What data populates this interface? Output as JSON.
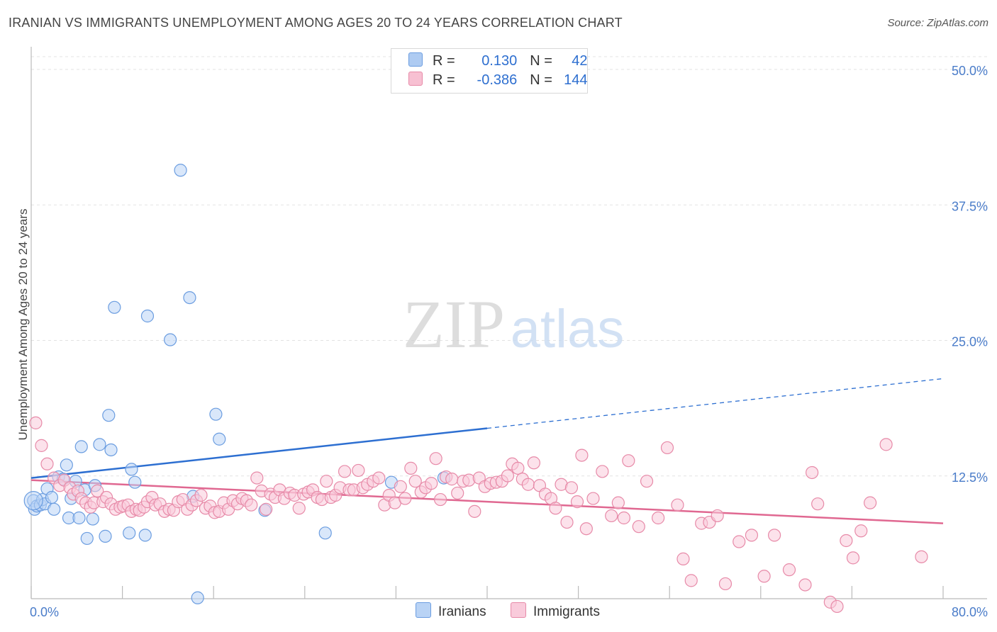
{
  "title": "IRANIAN VS IMMIGRANTS UNEMPLOYMENT AMONG AGES 20 TO 24 YEARS CORRELATION CHART",
  "source": "Source: ZipAtlas.com",
  "watermark": {
    "zip": "ZIP",
    "atlas": "atlas"
  },
  "legend": {
    "rows": [
      {
        "r_label": "R = ",
        "r_value": "0.130",
        "n_label": "N = ",
        "n_value": "42",
        "color": "#aecbf2",
        "border": "#6b9de0"
      },
      {
        "r_label": "R = ",
        "r_value": "-0.386",
        "n_label": "N = ",
        "n_value": "144",
        "color": "#f7c0d2",
        "border": "#e78aa8"
      }
    ]
  },
  "bottom_legend": [
    {
      "label": "Iranians",
      "color": "#b9d3f5",
      "border": "#6b9de0"
    },
    {
      "label": "Immigrants",
      "color": "#f9cbdb",
      "border": "#e78aa8"
    }
  ],
  "chart_data": {
    "type": "scatter",
    "title": "IRANIAN VS IMMIGRANTS UNEMPLOYMENT AMONG AGES 20 TO 24 YEARS CORRELATION CHART",
    "xlabel": "",
    "ylabel": "Unemployment Among Ages 20 to 24 years",
    "xlim": [
      0,
      80
    ],
    "ylim": [
      0,
      50
    ],
    "x_tick_labels": [
      {
        "value": 0,
        "label": "0.0%"
      },
      {
        "value": 80,
        "label": "80.0%"
      }
    ],
    "y_tick_labels": [
      {
        "value": 12.5,
        "label": "12.5%"
      },
      {
        "value": 25,
        "label": "25.0%"
      },
      {
        "value": 37.5,
        "label": "37.5%"
      },
      {
        "value": 50,
        "label": "50.0%"
      }
    ],
    "grid": true,
    "legend_position": "top-center",
    "series": [
      {
        "name": "Iranians",
        "color": "#6b9de0",
        "fill": "#b9d3f5",
        "trend": {
          "x0": 0,
          "y0": 12.1,
          "x1": 40,
          "y1": 16.7,
          "dash_to_x": 80,
          "dash_to_y": 21.3,
          "color": "#2d6fd1"
        },
        "points": [
          [
            0.2,
            10.0
          ],
          [
            0.3,
            9.2
          ],
          [
            0.5,
            9.5
          ],
          [
            0.8,
            9.6
          ],
          [
            1.0,
            10.1
          ],
          [
            1.2,
            9.7
          ],
          [
            1.4,
            11.1
          ],
          [
            1.8,
            10.3
          ],
          [
            2.0,
            9.2
          ],
          [
            2.4,
            12.2
          ],
          [
            2.8,
            12.0
          ],
          [
            3.1,
            13.3
          ],
          [
            3.3,
            8.4
          ],
          [
            3.5,
            10.2
          ],
          [
            3.9,
            11.8
          ],
          [
            4.2,
            8.4
          ],
          [
            4.4,
            15.0
          ],
          [
            4.7,
            11.0
          ],
          [
            4.9,
            6.5
          ],
          [
            5.4,
            8.3
          ],
          [
            5.6,
            11.4
          ],
          [
            6.0,
            15.2
          ],
          [
            6.5,
            6.7
          ],
          [
            6.8,
            17.9
          ],
          [
            7.0,
            14.7
          ],
          [
            7.3,
            27.9
          ],
          [
            8.6,
            7.0
          ],
          [
            8.8,
            12.9
          ],
          [
            9.1,
            11.7
          ],
          [
            10.0,
            6.8
          ],
          [
            10.2,
            27.1
          ],
          [
            12.2,
            24.9
          ],
          [
            13.1,
            40.6
          ],
          [
            13.9,
            28.8
          ],
          [
            14.2,
            10.4
          ],
          [
            14.6,
            1.0
          ],
          [
            16.2,
            18.0
          ],
          [
            16.5,
            15.7
          ],
          [
            20.5,
            9.1
          ],
          [
            25.8,
            7.0
          ],
          [
            31.6,
            11.7
          ],
          [
            36.2,
            12.1
          ]
        ]
      },
      {
        "name": "Immigrants",
        "color": "#e78aa8",
        "fill": "#f9cbdb",
        "trend": {
          "x0": 0,
          "y0": 11.9,
          "x1": 80,
          "y1": 7.9,
          "color": "#e06891"
        },
        "points": [
          [
            0.4,
            17.2
          ],
          [
            0.9,
            15.1
          ],
          [
            1.4,
            13.4
          ],
          [
            2.0,
            12.1
          ],
          [
            2.5,
            11.4
          ],
          [
            2.9,
            11.9
          ],
          [
            3.4,
            11.2
          ],
          [
            3.7,
            10.6
          ],
          [
            4.1,
            10.9
          ],
          [
            4.4,
            10.2
          ],
          [
            4.8,
            9.8
          ],
          [
            5.2,
            9.4
          ],
          [
            5.5,
            9.8
          ],
          [
            5.8,
            10.9
          ],
          [
            6.3,
            9.9
          ],
          [
            6.6,
            10.3
          ],
          [
            7.0,
            9.7
          ],
          [
            7.4,
            9.2
          ],
          [
            7.8,
            9.4
          ],
          [
            8.1,
            9.5
          ],
          [
            8.5,
            9.6
          ],
          [
            8.8,
            9.0
          ],
          [
            9.2,
            9.2
          ],
          [
            9.5,
            9.1
          ],
          [
            9.9,
            9.4
          ],
          [
            10.2,
            9.9
          ],
          [
            10.6,
            10.3
          ],
          [
            10.9,
            9.6
          ],
          [
            11.3,
            9.7
          ],
          [
            11.7,
            9.0
          ],
          [
            12.1,
            9.2
          ],
          [
            12.5,
            9.1
          ],
          [
            12.9,
            9.9
          ],
          [
            13.3,
            10.1
          ],
          [
            13.7,
            9.2
          ],
          [
            14.1,
            9.6
          ],
          [
            14.5,
            10.0
          ],
          [
            14.9,
            10.5
          ],
          [
            15.3,
            9.3
          ],
          [
            15.7,
            9.5
          ],
          [
            16.1,
            8.9
          ],
          [
            16.5,
            9.0
          ],
          [
            16.9,
            9.8
          ],
          [
            17.3,
            9.2
          ],
          [
            17.7,
            10.0
          ],
          [
            18.1,
            9.7
          ],
          [
            18.5,
            10.2
          ],
          [
            18.9,
            10.0
          ],
          [
            19.3,
            9.6
          ],
          [
            19.8,
            12.1
          ],
          [
            20.2,
            10.9
          ],
          [
            20.6,
            9.2
          ],
          [
            21.0,
            10.6
          ],
          [
            21.4,
            10.3
          ],
          [
            21.8,
            11.0
          ],
          [
            22.2,
            10.2
          ],
          [
            22.7,
            10.7
          ],
          [
            23.1,
            10.5
          ],
          [
            23.5,
            9.3
          ],
          [
            23.9,
            10.6
          ],
          [
            24.3,
            10.8
          ],
          [
            24.7,
            11.0
          ],
          [
            25.1,
            10.3
          ],
          [
            25.5,
            10.1
          ],
          [
            25.9,
            11.8
          ],
          [
            26.3,
            10.3
          ],
          [
            26.7,
            10.5
          ],
          [
            27.1,
            11.2
          ],
          [
            27.5,
            12.7
          ],
          [
            27.9,
            11.0
          ],
          [
            28.3,
            11.0
          ],
          [
            28.7,
            12.8
          ],
          [
            29.1,
            11.2
          ],
          [
            29.5,
            11.5
          ],
          [
            30.0,
            11.8
          ],
          [
            30.5,
            12.1
          ],
          [
            31.0,
            9.6
          ],
          [
            31.4,
            10.5
          ],
          [
            31.9,
            9.8
          ],
          [
            32.4,
            11.3
          ],
          [
            32.8,
            10.2
          ],
          [
            33.3,
            13.0
          ],
          [
            33.7,
            11.8
          ],
          [
            34.2,
            10.8
          ],
          [
            34.6,
            11.2
          ],
          [
            35.1,
            11.6
          ],
          [
            35.5,
            13.9
          ],
          [
            35.9,
            10.1
          ],
          [
            36.4,
            12.2
          ],
          [
            36.9,
            12.0
          ],
          [
            37.4,
            10.7
          ],
          [
            37.9,
            11.8
          ],
          [
            38.4,
            11.9
          ],
          [
            38.9,
            9.0
          ],
          [
            39.3,
            12.1
          ],
          [
            39.8,
            11.3
          ],
          [
            40.3,
            11.6
          ],
          [
            40.8,
            11.7
          ],
          [
            41.3,
            11.8
          ],
          [
            41.8,
            12.3
          ],
          [
            42.2,
            13.4
          ],
          [
            42.7,
            13.0
          ],
          [
            43.1,
            12.0
          ],
          [
            43.6,
            11.5
          ],
          [
            44.1,
            13.5
          ],
          [
            44.6,
            11.4
          ],
          [
            45.1,
            10.6
          ],
          [
            45.6,
            10.2
          ],
          [
            46.0,
            9.3
          ],
          [
            46.5,
            11.5
          ],
          [
            47.0,
            8.0
          ],
          [
            47.4,
            11.2
          ],
          [
            47.9,
            9.9
          ],
          [
            48.3,
            14.2
          ],
          [
            48.7,
            7.4
          ],
          [
            49.3,
            10.2
          ],
          [
            50.1,
            12.7
          ],
          [
            50.9,
            8.6
          ],
          [
            51.5,
            9.8
          ],
          [
            52.0,
            8.4
          ],
          [
            52.4,
            13.7
          ],
          [
            53.3,
            7.6
          ],
          [
            54.0,
            11.8
          ],
          [
            55.0,
            8.4
          ],
          [
            55.8,
            14.9
          ],
          [
            56.7,
            9.6
          ],
          [
            57.2,
            4.6
          ],
          [
            57.9,
            2.6
          ],
          [
            58.8,
            7.9
          ],
          [
            59.5,
            8.0
          ],
          [
            60.2,
            8.6
          ],
          [
            60.9,
            2.3
          ],
          [
            62.1,
            6.2
          ],
          [
            63.2,
            6.8
          ],
          [
            64.3,
            3.0
          ],
          [
            65.2,
            6.8
          ],
          [
            66.5,
            3.6
          ],
          [
            67.9,
            2.2
          ],
          [
            68.5,
            12.6
          ],
          [
            69.0,
            9.7
          ],
          [
            70.1,
            0.6
          ],
          [
            70.7,
            0.2
          ],
          [
            71.5,
            6.3
          ],
          [
            72.1,
            4.7
          ],
          [
            72.8,
            7.2
          ],
          [
            73.6,
            9.8
          ],
          [
            75.0,
            15.2
          ],
          [
            78.1,
            4.8
          ]
        ]
      }
    ]
  }
}
